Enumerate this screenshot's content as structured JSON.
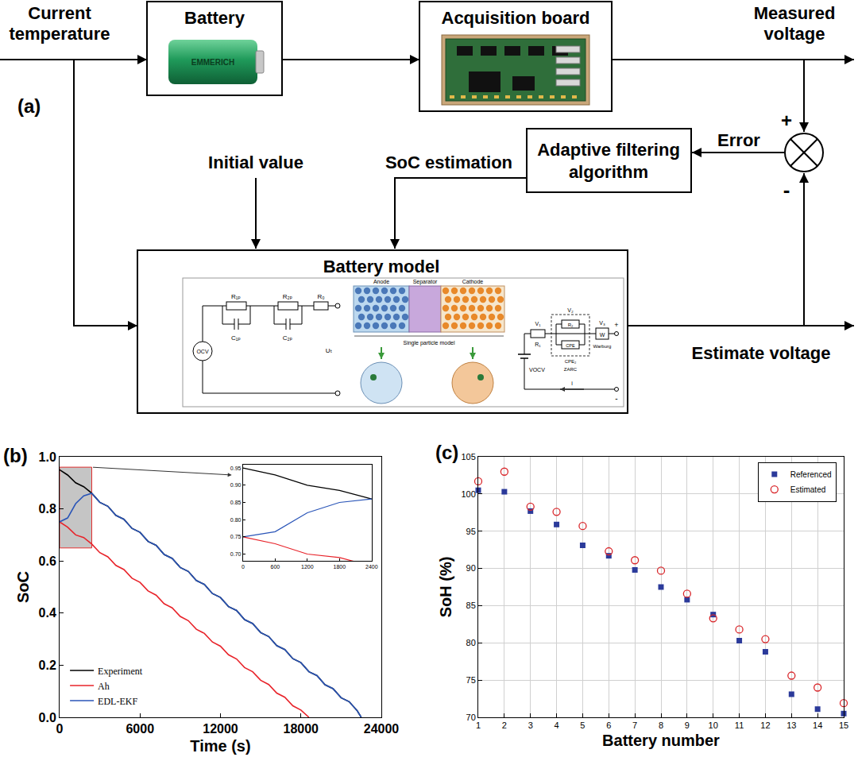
{
  "diagram": {
    "panel_label": "(a)",
    "current_temperature": [
      "Current",
      "temperature"
    ],
    "battery": {
      "title": "Battery",
      "label": "EMMERICH"
    },
    "acquisition_board": {
      "title": "Acquisition board"
    },
    "measured_voltage": [
      "Measured",
      "voltage"
    ],
    "comparator": {
      "plus": "+",
      "minus": "-"
    },
    "error": "Error",
    "adaptive_filter": [
      "Adaptive filtering",
      "algorithm"
    ],
    "soc_estimation": "SoC estimation",
    "initial_value": "Initial value",
    "battery_model": {
      "title": "Battery model",
      "ecm": {
        "source": "OCV",
        "r1": "R₁ₚ",
        "c1": "C₁ₚ",
        "r2": "R₂ₚ",
        "c2": "C₂ₚ",
        "r0": "R₀",
        "ut": "Uₜ"
      },
      "spm": {
        "anode": "Anode",
        "separator": "Separator",
        "cathode": "Cathode",
        "caption": "Single particle model"
      },
      "zarc": {
        "source": "VOCV",
        "v1": "V₁",
        "r1": "R₁",
        "v2": "V₂",
        "r2": "R₂",
        "cpe": "CPE",
        "cpe2": "CPE₂",
        "zarc": "ZARC",
        "v3": "V₃",
        "w": "W",
        "warburg": "Warburg",
        "plus": "+",
        "minus": "-",
        "current": "i"
      }
    },
    "estimate_voltage": "Estimate voltage"
  },
  "chart_data": [
    {
      "type": "line",
      "panel_label": "(b)",
      "x_label": "Time (s)",
      "y_label": "SoC",
      "xlim": [
        0,
        24000
      ],
      "xticks": [
        0,
        6000,
        12000,
        18000,
        24000
      ],
      "ylim": [
        0,
        1
      ],
      "yticks": [
        {
          "value": 0,
          "label": "0.0"
        },
        0.2,
        0.4,
        0.6,
        0.8,
        {
          "value": 1,
          "label": "1.0"
        }
      ],
      "grid": false,
      "legend": "lower left",
      "x": [
        0,
        600,
        1200,
        1800,
        2400,
        3000,
        3600,
        4200,
        4800,
        5400,
        6000,
        6600,
        7200,
        7800,
        8400,
        9000,
        9600,
        10200,
        10800,
        11400,
        12000,
        12600,
        13200,
        13800,
        14400,
        15000,
        15600,
        16200,
        16800,
        17400,
        18000,
        18600,
        19200,
        19800,
        20400,
        21000,
        21600,
        22200,
        22500
      ],
      "series": [
        {
          "name": "Experiment",
          "color": "#000000",
          "line_style": "solid",
          "values": [
            0.95,
            0.93,
            0.9,
            0.885,
            0.86,
            0.825,
            0.81,
            0.775,
            0.76,
            0.725,
            0.71,
            0.675,
            0.66,
            0.625,
            0.61,
            0.575,
            0.56,
            0.525,
            0.51,
            0.475,
            0.46,
            0.425,
            0.41,
            0.375,
            0.36,
            0.325,
            0.31,
            0.275,
            0.26,
            0.225,
            0.21,
            0.175,
            0.16,
            0.125,
            0.11,
            0.075,
            0.06,
            0.025,
            0.0
          ]
        },
        {
          "name": "Ah",
          "color": "#e8232a",
          "line_style": "solid",
          "values": [
            0.75,
            0.73,
            0.7,
            0.69,
            0.665,
            0.632,
            0.616,
            0.583,
            0.567,
            0.534,
            0.518,
            0.485,
            0.469,
            0.436,
            0.42,
            0.387,
            0.371,
            0.338,
            0.322,
            0.289,
            0.273,
            0.24,
            0.224,
            0.191,
            0.175,
            0.142,
            0.126,
            0.093,
            0.077,
            0.044,
            0.028,
            0.0,
            null,
            null,
            null,
            null,
            null,
            null,
            null
          ]
        },
        {
          "name": "EDL-EKF",
          "color": "#2a55b8",
          "line_style": "solid",
          "values": [
            0.75,
            0.765,
            0.82,
            0.85,
            0.86,
            0.825,
            0.81,
            0.775,
            0.76,
            0.725,
            0.71,
            0.675,
            0.66,
            0.625,
            0.61,
            0.575,
            0.56,
            0.525,
            0.51,
            0.475,
            0.46,
            0.425,
            0.41,
            0.375,
            0.36,
            0.325,
            0.31,
            0.275,
            0.26,
            0.225,
            0.21,
            0.175,
            0.16,
            0.125,
            0.11,
            0.075,
            0.06,
            0.025,
            0.0
          ]
        }
      ],
      "highlight": {
        "x": [
          0,
          2400
        ],
        "y": [
          0.65,
          0.96
        ]
      },
      "inset": {
        "xlim": [
          0,
          2400
        ],
        "xticks": [
          0,
          600,
          1200,
          1800,
          2400
        ],
        "ylim": [
          0.68,
          0.96
        ],
        "yticks": [
          {
            "value": 0.7,
            "label": "0.70"
          },
          0.75,
          {
            "value": 0.8,
            "label": "0.80"
          },
          0.85,
          {
            "value": 0.9,
            "label": "0.90"
          },
          0.95
        ]
      }
    },
    {
      "type": "scatter",
      "panel_label": "(c)",
      "x_label": "Battery number",
      "y_label": "SoH (%)",
      "xlim": [
        1,
        15
      ],
      "xticks": [
        1,
        2,
        3,
        4,
        5,
        6,
        7,
        8,
        9,
        10,
        11,
        12,
        13,
        14,
        15
      ],
      "ylim": [
        70,
        105
      ],
      "yticks": [
        70,
        75,
        80,
        85,
        90,
        95,
        100,
        105
      ],
      "grid": true,
      "legend": "upper right",
      "x": [
        1,
        2,
        3,
        4,
        5,
        6,
        7,
        8,
        9,
        10,
        11,
        12,
        13,
        14,
        15
      ],
      "series": [
        {
          "name": "Referenced",
          "color": "#2b3a9a",
          "marker": "square",
          "values": [
            100.5,
            100.3,
            97.7,
            95.9,
            93.1,
            91.7,
            89.8,
            87.5,
            85.8,
            83.8,
            80.3,
            78.8,
            73.1,
            71.1,
            70.5
          ]
        },
        {
          "name": "Estimated",
          "color": "#d9262a",
          "marker": "circle-open",
          "values": [
            101.7,
            103.0,
            98.3,
            97.6,
            95.7,
            92.3,
            91.1,
            89.7,
            86.6,
            83.3,
            81.8,
            80.5,
            75.6,
            74.0,
            71.9
          ]
        }
      ]
    }
  ]
}
